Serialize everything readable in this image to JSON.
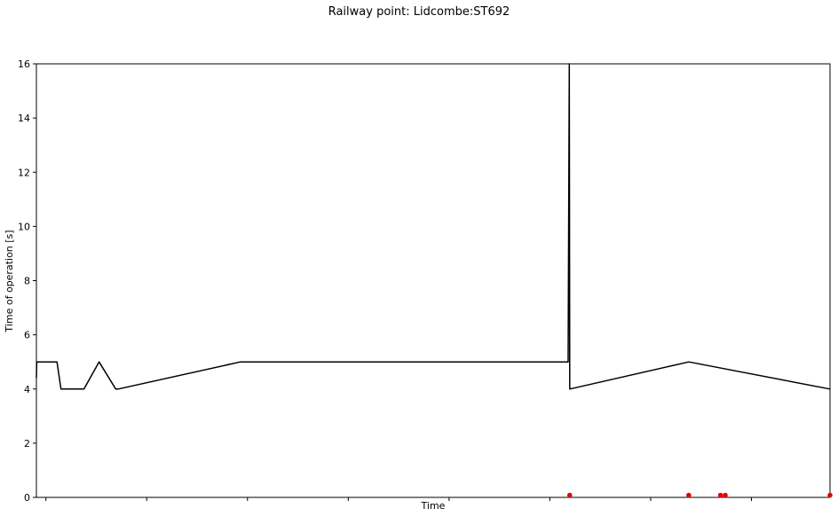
{
  "chart_data": {
    "type": "line",
    "title": "Railway point: Lidcombe:ST692",
    "xlabel": "Time",
    "ylabel": "Time of operation [s]",
    "ylim": [
      0,
      16
    ],
    "yticks": [
      0,
      2,
      4,
      6,
      8,
      10,
      12,
      14,
      16
    ],
    "xlim": [
      0,
      1000
    ],
    "xticks": [
      12,
      139,
      266,
      393,
      520,
      647,
      774,
      901
    ],
    "grid": false,
    "series": [
      {
        "color": "#000000",
        "points": [
          [
            0,
            4.4
          ],
          [
            0.5,
            5
          ],
          [
            26,
            5
          ],
          [
            31,
            4
          ],
          [
            60,
            4
          ],
          [
            79,
            5
          ],
          [
            100,
            4
          ],
          [
            103,
            4
          ],
          [
            257,
            5
          ],
          [
            670,
            5
          ],
          [
            671.5,
            16
          ],
          [
            672,
            4
          ],
          [
            822,
            5
          ],
          [
            1000,
            4
          ]
        ]
      }
    ],
    "markers": {
      "color": "#e00000",
      "points": [
        [
          672,
          0.08
        ],
        [
          822,
          0.08
        ],
        [
          862,
          0.08
        ],
        [
          868,
          0.08
        ],
        [
          1000,
          0.08
        ]
      ]
    }
  }
}
